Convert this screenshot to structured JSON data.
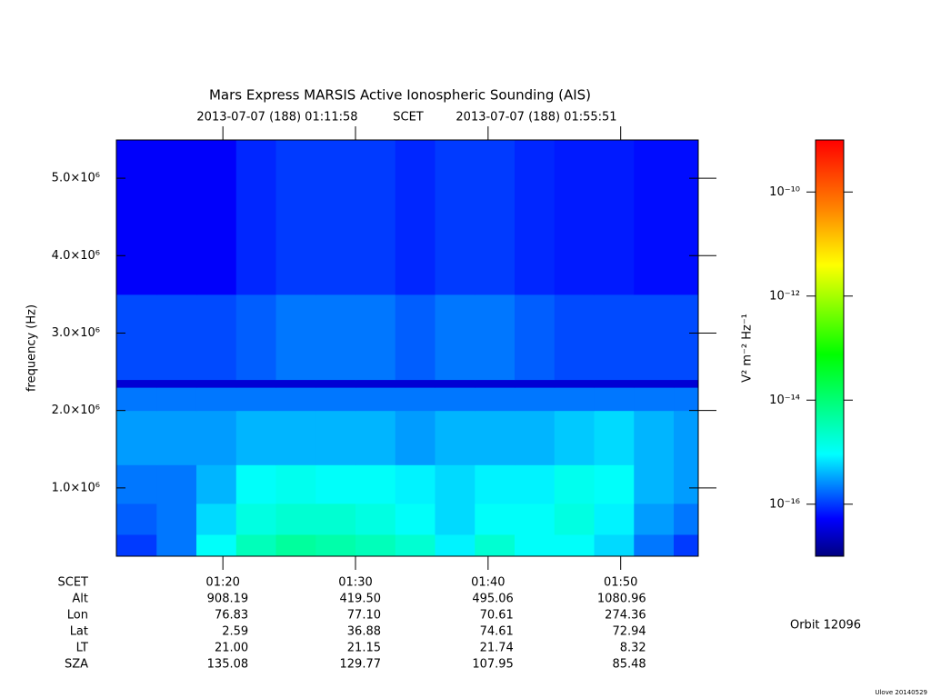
{
  "chart_data": {
    "type": "heatmap",
    "title": "Mars Express MARSIS Active Ionospheric Sounding (AIS)",
    "start": "2013-07-07 (188) 01:11:58",
    "scet_label": "SCET",
    "end": "2013-07-07 (188) 01:55:51",
    "ylabel": "frequency (Hz)",
    "xlim": [
      "01:11:58",
      "01:55:51"
    ],
    "xticks": [
      "01:20",
      "01:30",
      "01:40",
      "01:50"
    ],
    "ylim": [
      118000,
      5494000
    ],
    "yticks": [
      {
        "value": 1000000,
        "label": "1.0×10⁶"
      },
      {
        "value": 2000000,
        "label": "2.0×10⁶"
      },
      {
        "value": 3000000,
        "label": "3.0×10⁶"
      },
      {
        "value": 4000000,
        "label": "4.0×10⁶"
      },
      {
        "value": 5000000,
        "label": "5.0×10⁶"
      }
    ],
    "time_edges": [
      "01:11:58",
      "01:15",
      "01:18",
      "01:21",
      "01:24",
      "01:27",
      "01:30",
      "01:33",
      "01:36",
      "01:39",
      "01:42",
      "01:45",
      "01:48",
      "01:51",
      "01:54",
      "01:55:51"
    ],
    "freq_edges": [
      118000,
      400000,
      800000,
      1300000,
      2000000,
      2300000,
      2400000,
      3500000,
      5494000
    ],
    "values": [
      [
        1e-16,
        2e-16,
        1e-15,
        3e-15,
        5e-15,
        4e-15,
        3e-15,
        2e-15,
        8e-16,
        2e-15,
        1e-15,
        1e-15,
        6e-16,
        2e-16,
        1e-16
      ],
      [
        1.5e-16,
        2e-16,
        6e-16,
        1.5e-15,
        2e-15,
        2e-15,
        1.5e-15,
        1e-15,
        6e-16,
        1e-15,
        1e-15,
        1.5e-15,
        8e-16,
        3e-16,
        2e-16
      ],
      [
        2e-16,
        2e-16,
        4e-16,
        1e-15,
        1.2e-15,
        1e-15,
        1e-15,
        8e-16,
        6e-16,
        8e-16,
        8e-16,
        1.2e-15,
        1e-15,
        4e-16,
        3e-16
      ],
      [
        3e-16,
        3e-16,
        3e-16,
        4e-16,
        4e-16,
        4e-16,
        4e-16,
        3e-16,
        4e-16,
        4e-16,
        4e-16,
        5e-16,
        6e-16,
        4e-16,
        3e-16
      ],
      [
        2e-16,
        2e-16,
        2e-16,
        2e-16,
        2e-16,
        2e-16,
        2e-16,
        2e-16,
        2e-16,
        2e-16,
        2e-16,
        2e-16,
        2e-16,
        2e-16,
        2e-16
      ],
      [
        3e-17,
        3e-17,
        3e-17,
        3e-17,
        3e-17,
        3e-17,
        3e-17,
        3e-17,
        3e-17,
        3e-17,
        3e-17,
        3e-17,
        3e-17,
        3e-17,
        3e-17
      ],
      [
        1.2e-16,
        1.2e-16,
        1.2e-16,
        1.5e-16,
        2e-16,
        2e-16,
        2e-16,
        1.5e-16,
        2e-16,
        2e-16,
        1.5e-16,
        1.2e-16,
        1.2e-16,
        1.2e-16,
        1.2e-16
      ],
      [
        5e-17,
        5e-17,
        5e-17,
        8e-17,
        1e-16,
        1e-16,
        1e-16,
        8e-17,
        1e-16,
        1e-16,
        8e-17,
        7e-17,
        7e-17,
        6e-17,
        6e-17
      ]
    ],
    "colorbar_label": "V² m⁻² Hz⁻¹",
    "colorbar_scale": "log",
    "clim": [
      1e-17,
      1e-09
    ],
    "cticks": [
      {
        "value": 1e-16,
        "label": "10⁻¹⁶"
      },
      {
        "value": 1e-14,
        "label": "10⁻¹⁴"
      },
      {
        "value": 1e-12,
        "label": "10⁻¹²"
      },
      {
        "value": 1e-10,
        "label": "10⁻¹⁰"
      }
    ],
    "ephemeris": {
      "labels": [
        "SCET",
        "Alt",
        "Lon",
        "Lat",
        "LT",
        "SZA"
      ],
      "rows": [
        [
          "908.19",
          "419.50",
          "495.06",
          "1080.96"
        ],
        [
          "76.83",
          "77.10",
          "70.61",
          "274.36"
        ],
        [
          "2.59",
          "36.88",
          "74.61",
          "72.94"
        ],
        [
          "21.00",
          "21.15",
          "21.74",
          "8.32"
        ],
        [
          "135.08",
          "129.77",
          "107.95",
          "85.48"
        ]
      ]
    },
    "orbit": "Orbit 12096",
    "credit": "Ulove 20140529"
  }
}
